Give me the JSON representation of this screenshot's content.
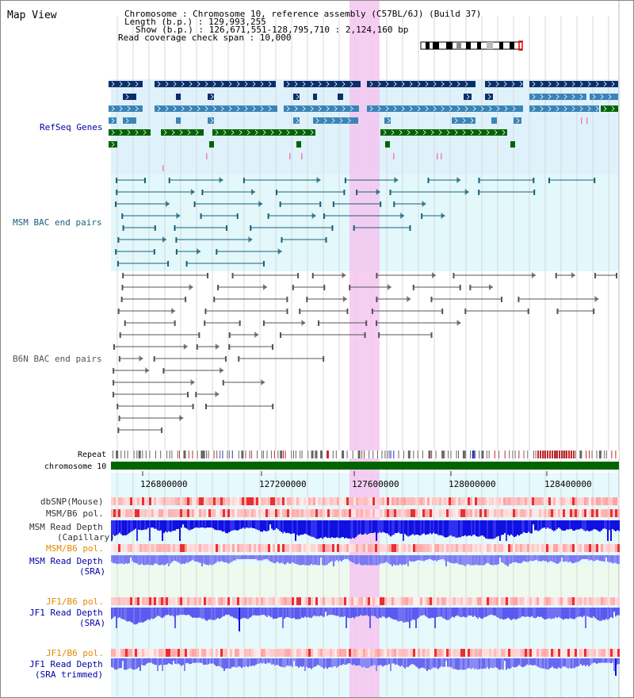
{
  "title": "Map View",
  "info": {
    "lines": [
      "Chromosome      : Chromosome 10, reference assembly (C57BL/6J) (Build 37)",
      "Length (b.p.) : 129,993,255",
      "Show (b.p.) : 126,671,551-128,795,710 : 2,124,160 bp",
      "Read coverage check span : 10,000"
    ]
  },
  "axis": {
    "ticks": [
      "126800000",
      "127200000",
      "127600000",
      "128000000",
      "128400000"
    ]
  },
  "tracks": {
    "refseq": "RefSeq Genes",
    "msm_bac": "MSM BAC end pairs",
    "b6n_bac": "B6N BAC end pairs",
    "repeat": "Repeat",
    "chromosome": "chromosome 10",
    "dbsnp": "dbSNP(Mouse)",
    "msm_b6_pol_1": "MSM/B6 pol.",
    "msm_depth_cap_1": "MSM Read Depth",
    "msm_depth_cap_2": "(Capillary)",
    "msm_b6_pol_2": "MSM/B6 pol.",
    "msm_depth_sra_1": "MSM Read Depth",
    "msm_depth_sra_2": "(SRA)",
    "jf1_b6_pol_1": "JF1/B6 pol.",
    "jf1_depth_sra_1": "JF1 Read Depth",
    "jf1_depth_sra_2": "(SRA)",
    "jf1_b6_pol_2": "JF1/B6 pol.",
    "jf1_depth_trim_1": "JF1 Read Depth",
    "jf1_depth_trim_2": "(SRA trimmed)"
  },
  "colors": {
    "refseq_dark": "#0b2f6b",
    "refseq_mid": "#3b84b8",
    "refseq_green": "#006400",
    "bac_msm": "#1a5f7a",
    "bac_b6n": "#555555",
    "highlight": "#f4c6f0",
    "chromosome": "#006400",
    "depth_dark": "#1010e0",
    "depth_light": "#6868f0",
    "label_blue": "#0000aa",
    "label_orange": "#e08a00",
    "label_gray": "#333333"
  }
}
